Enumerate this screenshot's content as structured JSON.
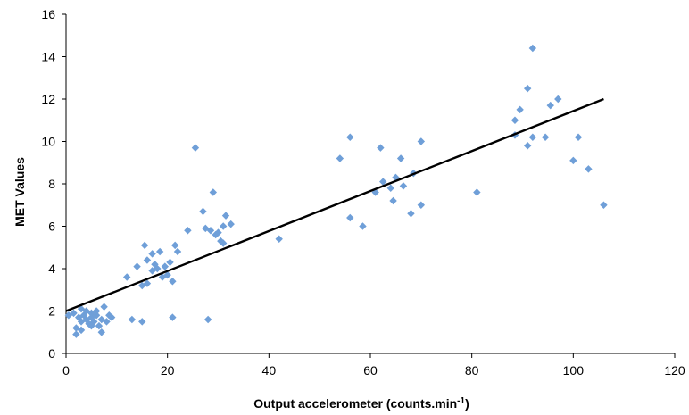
{
  "chart_data": {
    "type": "scatter",
    "title": "",
    "xlabel_main": "Output accelerometer (counts.min",
    "xlabel_sup": "-1",
    "xlabel_close": ")",
    "ylabel": "MET Values",
    "xlim": [
      0,
      120
    ],
    "ylim": [
      0,
      16
    ],
    "xticks": [
      0,
      20,
      40,
      60,
      80,
      100,
      120
    ],
    "yticks": [
      0,
      2,
      4,
      6,
      8,
      10,
      12,
      14,
      16
    ],
    "grid": false,
    "legend": "none",
    "marker_color": "#6f9fd8",
    "trendline_color": "#000000",
    "series": [
      {
        "values": [
          [
            0.5,
            1.8
          ],
          [
            1.5,
            1.9
          ],
          [
            2,
            1.2
          ],
          [
            2,
            0.9
          ],
          [
            2.5,
            1.7
          ],
          [
            3,
            1.5
          ],
          [
            3,
            2.1
          ],
          [
            3.5,
            1.8
          ],
          [
            4,
            1.6
          ],
          [
            4,
            2.0
          ],
          [
            4.5,
            1.4
          ],
          [
            5,
            1.7
          ],
          [
            5,
            1.9
          ],
          [
            5.5,
            1.5
          ],
          [
            6,
            1.8
          ],
          [
            6,
            2.0
          ],
          [
            6.5,
            1.3
          ],
          [
            7,
            1.6
          ],
          [
            7,
            1.0
          ],
          [
            7.5,
            2.2
          ],
          [
            8,
            1.5
          ],
          [
            8.5,
            1.8
          ],
          [
            9,
            1.7
          ],
          [
            3,
            1.1
          ],
          [
            5,
            1.3
          ],
          [
            12,
            3.6
          ],
          [
            13,
            1.6
          ],
          [
            14,
            4.1
          ],
          [
            15,
            1.5
          ],
          [
            15,
            3.2
          ],
          [
            15.5,
            5.1
          ],
          [
            16,
            4.4
          ],
          [
            16,
            3.3
          ],
          [
            17,
            3.9
          ],
          [
            17,
            4.7
          ],
          [
            17.5,
            4.2
          ],
          [
            18,
            4.0
          ],
          [
            18.5,
            4.8
          ],
          [
            19,
            3.6
          ],
          [
            19.5,
            4.1
          ],
          [
            20,
            3.7
          ],
          [
            20.5,
            4.3
          ],
          [
            21,
            3.4
          ],
          [
            21,
            1.7
          ],
          [
            21.5,
            5.1
          ],
          [
            22,
            4.8
          ],
          [
            24,
            5.8
          ],
          [
            25.5,
            9.7
          ],
          [
            27,
            6.7
          ],
          [
            27.5,
            5.9
          ],
          [
            28,
            1.6
          ],
          [
            28.5,
            5.8
          ],
          [
            29,
            7.6
          ],
          [
            29.5,
            5.6
          ],
          [
            30,
            5.7
          ],
          [
            30.5,
            5.3
          ],
          [
            31,
            6.0
          ],
          [
            31,
            5.2
          ],
          [
            31.5,
            6.5
          ],
          [
            32.5,
            6.1
          ],
          [
            42,
            5.4
          ],
          [
            54,
            9.2
          ],
          [
            56,
            10.2
          ],
          [
            56,
            6.4
          ],
          [
            58.5,
            6.0
          ],
          [
            61,
            7.6
          ],
          [
            62,
            9.7
          ],
          [
            62.5,
            8.1
          ],
          [
            64,
            7.8
          ],
          [
            64.5,
            7.2
          ],
          [
            65,
            8.3
          ],
          [
            66,
            9.2
          ],
          [
            66.5,
            7.9
          ],
          [
            68,
            6.6
          ],
          [
            68.5,
            8.5
          ],
          [
            70,
            10.0
          ],
          [
            70,
            7.0
          ],
          [
            81,
            7.6
          ],
          [
            88.5,
            11.0
          ],
          [
            88.5,
            10.3
          ],
          [
            89.5,
            11.5
          ],
          [
            91,
            12.5
          ],
          [
            91,
            9.8
          ],
          [
            92,
            14.4
          ],
          [
            92,
            10.2
          ],
          [
            94.5,
            10.2
          ],
          [
            95.5,
            11.7
          ],
          [
            97,
            12.0
          ],
          [
            100,
            9.1
          ],
          [
            101,
            10.2
          ],
          [
            103,
            8.7
          ],
          [
            106,
            7.0
          ]
        ]
      }
    ],
    "trendline": [
      [
        0,
        2.0
      ],
      [
        106,
        12.0
      ]
    ]
  }
}
